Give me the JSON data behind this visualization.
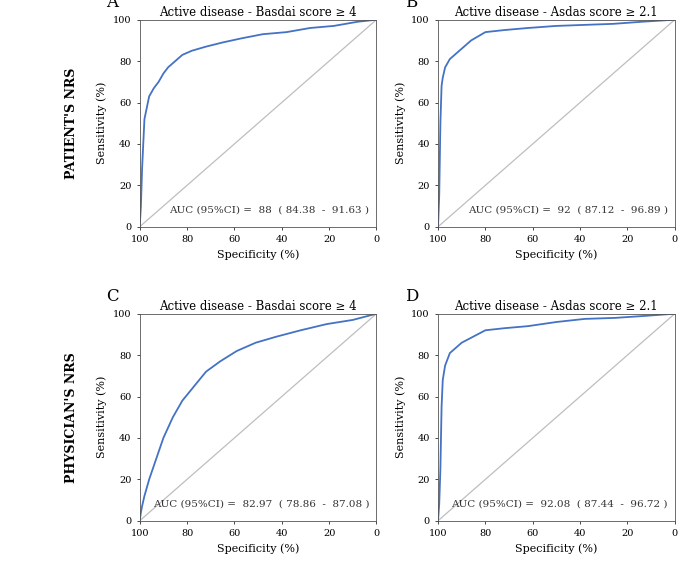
{
  "panels": [
    {
      "label": "A",
      "title": "Active disease - Basdai score ≥ 4",
      "auc_text": "AUC (95%CI) =  88  ( 84.38  -  91.63 )",
      "row_label": "PATIENT'S NRS",
      "curve_type": "A"
    },
    {
      "label": "B",
      "title": "Active disease - Asdas score ≥ 2.1",
      "auc_text": "AUC (95%CI) =  92  ( 87.12  -  96.89 )",
      "row_label": null,
      "curve_type": "B"
    },
    {
      "label": "C",
      "title": "Active disease - Basdai score ≥ 4",
      "auc_text": "AUC (95%CI) =  82.97  ( 78.86  -  87.08 )",
      "row_label": "PHYSICIAN'S NRS",
      "curve_type": "C"
    },
    {
      "label": "D",
      "title": "Active disease - Asdas score ≥ 2.1",
      "auc_text": "AUC (95%CI) =  92.08  ( 87.44  -  96.72 )",
      "row_label": null,
      "curve_type": "D"
    }
  ],
  "roc_color": "#4472C4",
  "diag_color": "#BEBEBE",
  "background_color": "#FFFFFF",
  "tick_fontsize": 7,
  "label_fontsize": 8,
  "title_fontsize": 8.5,
  "auc_fontsize": 7.5,
  "panel_label_fontsize": 12,
  "row_label_fontsize": 9
}
